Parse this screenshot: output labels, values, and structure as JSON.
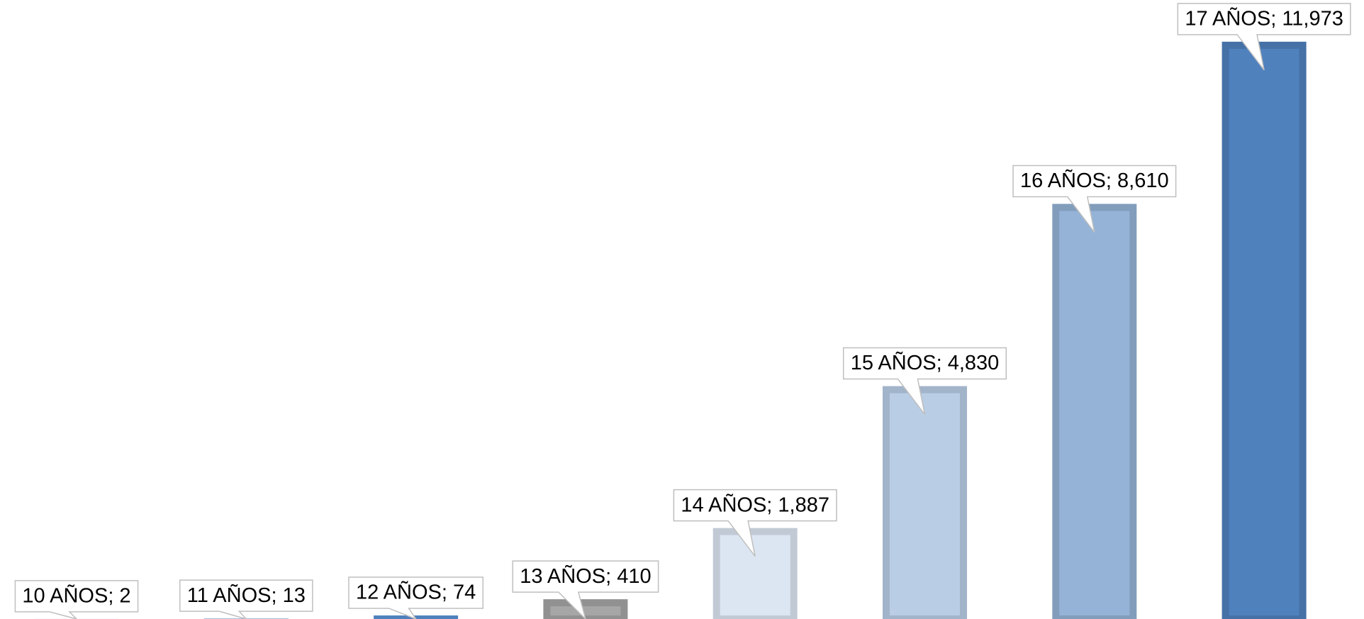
{
  "chart_data": {
    "type": "bar",
    "values": [
      2,
      13,
      74,
      410,
      1887,
      4830,
      8610,
      11973
    ],
    "value_labels": [
      "10 AÑOS; 2",
      "11 AÑOS; 13",
      "12 AÑOS; 74",
      "13 AÑOS; 410",
      "14 AÑOS; 1,887",
      "15 AÑOS; 4,830",
      "16 AÑOS; 8,610",
      "17 AÑOS; 11,973"
    ],
    "colors": [
      "#b9cde5",
      "#95b3d7",
      "#4f81bd",
      "#a6a6a6",
      "#dce6f2",
      "#b9cde5",
      "#95b3d7",
      "#4f81bd"
    ],
    "ylim": [
      0,
      12000
    ]
  }
}
